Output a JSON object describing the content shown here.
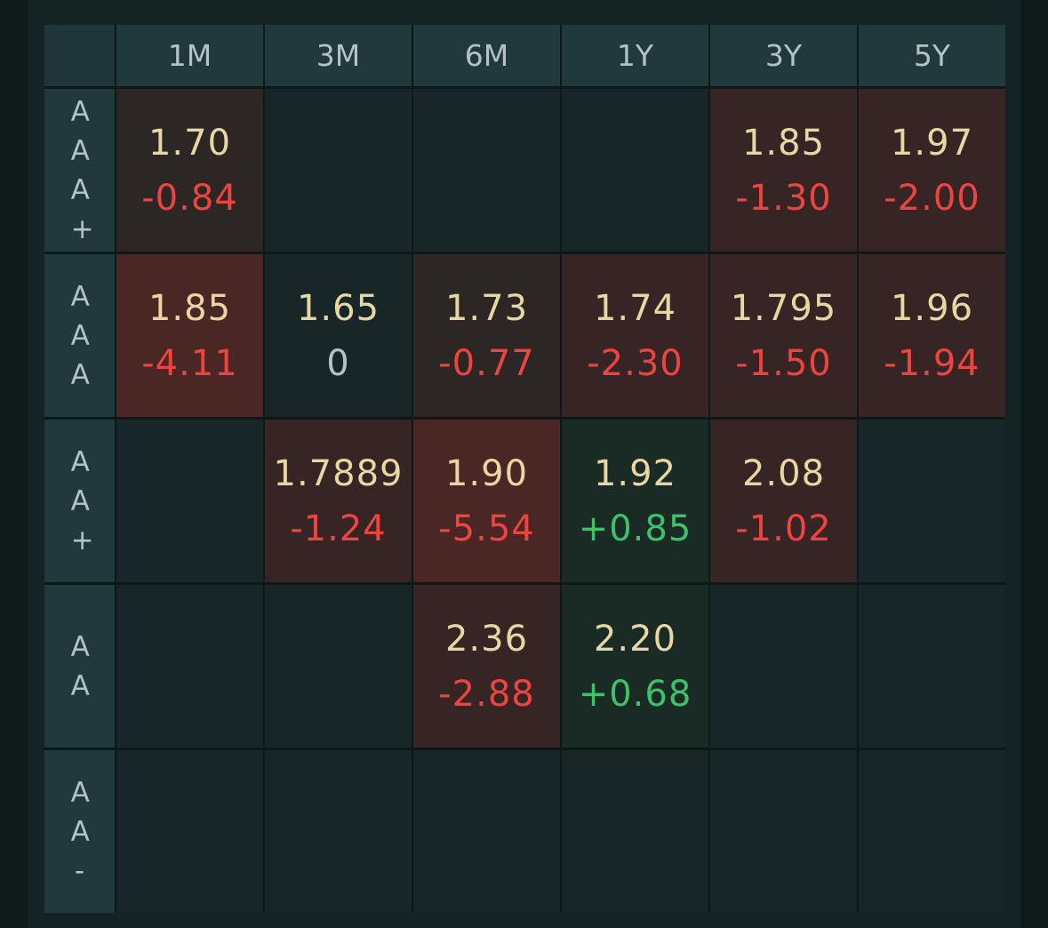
{
  "columns": [
    "1M",
    "3M",
    "6M",
    "1Y",
    "3Y",
    "5Y"
  ],
  "rows": [
    {
      "label": "AAA+",
      "cells": [
        {
          "value": "1.70",
          "change": "-0.84",
          "direction": "neg"
        },
        null,
        null,
        null,
        {
          "value": "1.85",
          "change": "-1.30",
          "direction": "neg"
        },
        {
          "value": "1.97",
          "change": "-2.00",
          "direction": "neg"
        }
      ]
    },
    {
      "label": "AAA",
      "cells": [
        {
          "value": "1.85",
          "change": "-4.11",
          "direction": "neg"
        },
        {
          "value": "1.65",
          "change": "0",
          "direction": "zero"
        },
        {
          "value": "1.73",
          "change": "-0.77",
          "direction": "neg"
        },
        {
          "value": "1.74",
          "change": "-2.30",
          "direction": "neg"
        },
        {
          "value": "1.795",
          "change": "-1.50",
          "direction": "neg"
        },
        {
          "value": "1.96",
          "change": "-1.94",
          "direction": "neg"
        }
      ]
    },
    {
      "label": "AA+",
      "cells": [
        null,
        {
          "value": "1.7889",
          "change": "-1.24",
          "direction": "neg"
        },
        {
          "value": "1.90",
          "change": "-5.54",
          "direction": "neg"
        },
        {
          "value": "1.92",
          "change": "+0.85",
          "direction": "pos"
        },
        {
          "value": "2.08",
          "change": "-1.02",
          "direction": "neg"
        },
        null
      ]
    },
    {
      "label": "AA",
      "cells": [
        null,
        null,
        {
          "value": "2.36",
          "change": "-2.88",
          "direction": "neg"
        },
        {
          "value": "2.20",
          "change": "+0.68",
          "direction": "pos"
        },
        null,
        null
      ]
    },
    {
      "label": "AA-",
      "cells": [
        null,
        null,
        null,
        null,
        null,
        null
      ]
    }
  ],
  "colors": {
    "value_text": "#e8d7a2",
    "negative": "#ef4340",
    "positive": "#3cc36a",
    "neutral": "#b3c2c2",
    "empty_cell": "#192627",
    "header": "#21393b"
  }
}
